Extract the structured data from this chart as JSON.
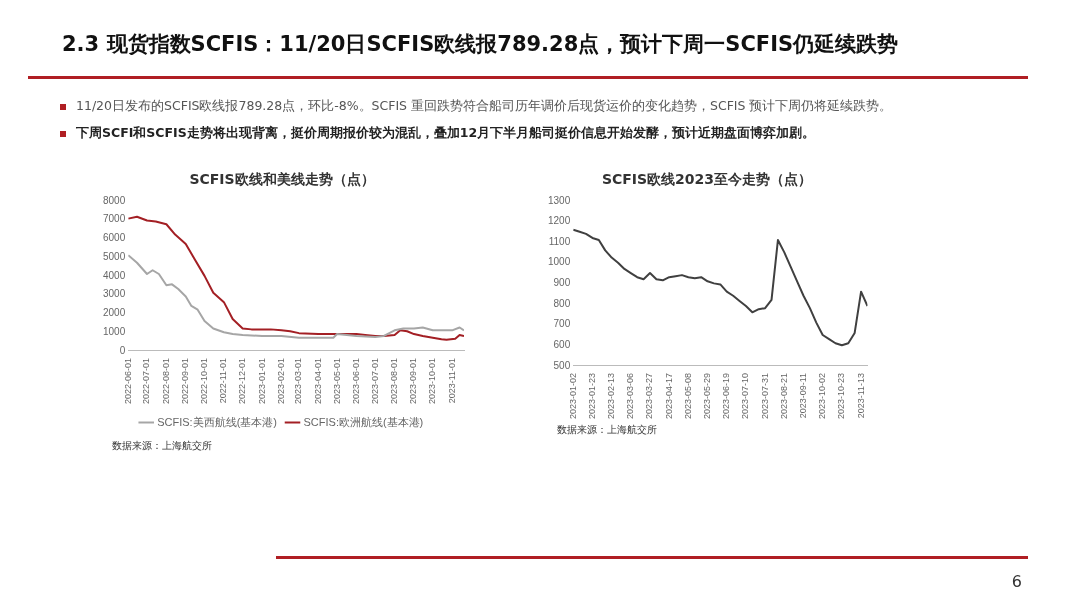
{
  "chart_data": [
    {
      "type": "other",
      "title": "2.3 现货指数SCFIS：11/20日SCFIS欧线报789.28点，预计下周一SCFIS仍延续跌势",
      "annotations": [
        "11/20日发布的SCFIS欧线报789.28点，环比-8%。SCFIS 重回跌势符合船司历年调价后现货运价的变化趋势，SCFIS 预计下周仍将延续跌势。",
        "下周SCFI和SCFIS走势将出现背离，挺价周期报价较为混乱，叠加12月下半月船司挺价信息开始发酵，预计近期盘面博弈加剧。",
        "6"
      ]
    },
    {
      "type": "line",
      "title": "SCFIS欧线和美线走势（点）",
      "legend": "bottom",
      "annotations": [
        "数据来源：上海航交所"
      ],
      "xlim": [
        "2022-06-01",
        "2023-11-20"
      ],
      "xticks": [
        "2022-06-01",
        "2022-07-01",
        "2022-08-01",
        "2022-09-01",
        "2022-10-01",
        "2022-11-01",
        "2022-12-01",
        "2023-01-01",
        "2023-02-01",
        "2023-03-01",
        "2023-04-01",
        "2023-05-01",
        "2023-06-01",
        "2023-07-01",
        "2023-08-01",
        "2023-09-01",
        "2023-10-01",
        "2023-11-01"
      ],
      "ylim": [
        0,
        8000
      ],
      "yticks": [
        0,
        1000,
        2000,
        3000,
        4000,
        5000,
        6000,
        7000,
        8000
      ],
      "series": [
        {
          "name": "SCFIS:美西航线(基本港)",
          "color": "#a6a6a6",
          "x": [
            "2022-06-01",
            "2022-06-15",
            "2022-07-01",
            "2022-07-10",
            "2022-07-20",
            "2022-08-01",
            "2022-08-10",
            "2022-08-20",
            "2022-09-01",
            "2022-09-10",
            "2022-09-20",
            "2022-10-01",
            "2022-10-15",
            "2022-11-01",
            "2022-11-15",
            "2022-12-01",
            "2023-01-01",
            "2023-02-01",
            "2023-03-01",
            "2023-04-01",
            "2023-04-25",
            "2023-05-01",
            "2023-06-01",
            "2023-07-01",
            "2023-07-15",
            "2023-08-01",
            "2023-08-15",
            "2023-09-01",
            "2023-09-15",
            "2023-10-01",
            "2023-10-15",
            "2023-11-01",
            "2023-11-13",
            "2023-11-20"
          ],
          "values": [
            5100,
            4700,
            4100,
            4300,
            4100,
            3500,
            3550,
            3300,
            2900,
            2400,
            2200,
            1600,
            1200,
            1000,
            900,
            850,
            800,
            800,
            700,
            700,
            700,
            900,
            800,
            750,
            800,
            1100,
            1200,
            1200,
            1250,
            1100,
            1100,
            1100,
            1250,
            1100
          ]
        },
        {
          "name": "SCFIS:欧洲航线(基本港)",
          "color": "#a31f24",
          "x": [
            "2022-06-01",
            "2022-06-15",
            "2022-07-01",
            "2022-07-15",
            "2022-08-01",
            "2022-08-15",
            "2022-09-01",
            "2022-09-15",
            "2022-10-01",
            "2022-10-15",
            "2022-11-01",
            "2022-11-15",
            "2022-12-01",
            "2022-12-15",
            "2023-01-01",
            "2023-01-15",
            "2023-02-01",
            "2023-02-15",
            "2023-03-01",
            "2023-04-01",
            "2023-05-01",
            "2023-06-01",
            "2023-06-15",
            "2023-07-01",
            "2023-07-15",
            "2023-08-01",
            "2023-08-10",
            "2023-08-21",
            "2023-09-01",
            "2023-09-15",
            "2023-10-01",
            "2023-10-15",
            "2023-10-23",
            "2023-11-06",
            "2023-11-13",
            "2023-11-20"
          ],
          "values": [
            7050,
            7150,
            6950,
            6900,
            6750,
            6200,
            5700,
            4900,
            4000,
            3100,
            2600,
            1700,
            1200,
            1150,
            1150,
            1150,
            1100,
            1050,
            950,
            900,
            900,
            900,
            850,
            800,
            800,
            850,
            1100,
            1050,
            900,
            800,
            700,
            620,
            600,
            650,
            850,
            790
          ]
        }
      ]
    },
    {
      "type": "line",
      "title": "SCFIS欧线2023至今走势（点）",
      "annotations": [
        "数据来源：上海航交所"
      ],
      "xlim": [
        "2023-01-02",
        "2023-11-20"
      ],
      "xticks": [
        "2023-01-02",
        "2023-01-23",
        "2023-02-13",
        "2023-03-06",
        "2023-03-27",
        "2023-04-17",
        "2023-05-08",
        "2023-05-29",
        "2023-06-19",
        "2023-07-10",
        "2023-07-31",
        "2023-08-21",
        "2023-09-11",
        "2023-10-02",
        "2023-10-23",
        "2023-11-13"
      ],
      "ylim": [
        500,
        1300
      ],
      "yticks": [
        500,
        600,
        700,
        800,
        900,
        1000,
        1100,
        1200,
        1300
      ],
      "series": [
        {
          "color": "#404040",
          "x": [
            "2023-01-02",
            "2023-01-09",
            "2023-01-16",
            "2023-01-23",
            "2023-01-30",
            "2023-02-06",
            "2023-02-13",
            "2023-02-20",
            "2023-02-27",
            "2023-03-06",
            "2023-03-13",
            "2023-03-20",
            "2023-03-27",
            "2023-04-03",
            "2023-04-10",
            "2023-04-17",
            "2023-04-24",
            "2023-05-01",
            "2023-05-08",
            "2023-05-15",
            "2023-05-22",
            "2023-05-29",
            "2023-06-05",
            "2023-06-12",
            "2023-06-19",
            "2023-06-26",
            "2023-07-03",
            "2023-07-10",
            "2023-07-17",
            "2023-07-24",
            "2023-07-31",
            "2023-08-07",
            "2023-08-14",
            "2023-08-21",
            "2023-08-28",
            "2023-09-04",
            "2023-09-11",
            "2023-09-18",
            "2023-09-25",
            "2023-10-02",
            "2023-10-09",
            "2023-10-16",
            "2023-10-23",
            "2023-10-30",
            "2023-11-06",
            "2023-11-13",
            "2023-11-20"
          ],
          "values": [
            1160,
            1150,
            1140,
            1120,
            1110,
            1060,
            1025,
            1000,
            970,
            950,
            930,
            920,
            950,
            920,
            915,
            930,
            935,
            940,
            930,
            925,
            930,
            910,
            900,
            895,
            860,
            840,
            815,
            790,
            760,
            775,
            780,
            820,
            1110,
            1050,
            980,
            910,
            840,
            780,
            710,
            650,
            630,
            610,
            600,
            610,
            660,
            860,
            790
          ]
        }
      ]
    }
  ]
}
